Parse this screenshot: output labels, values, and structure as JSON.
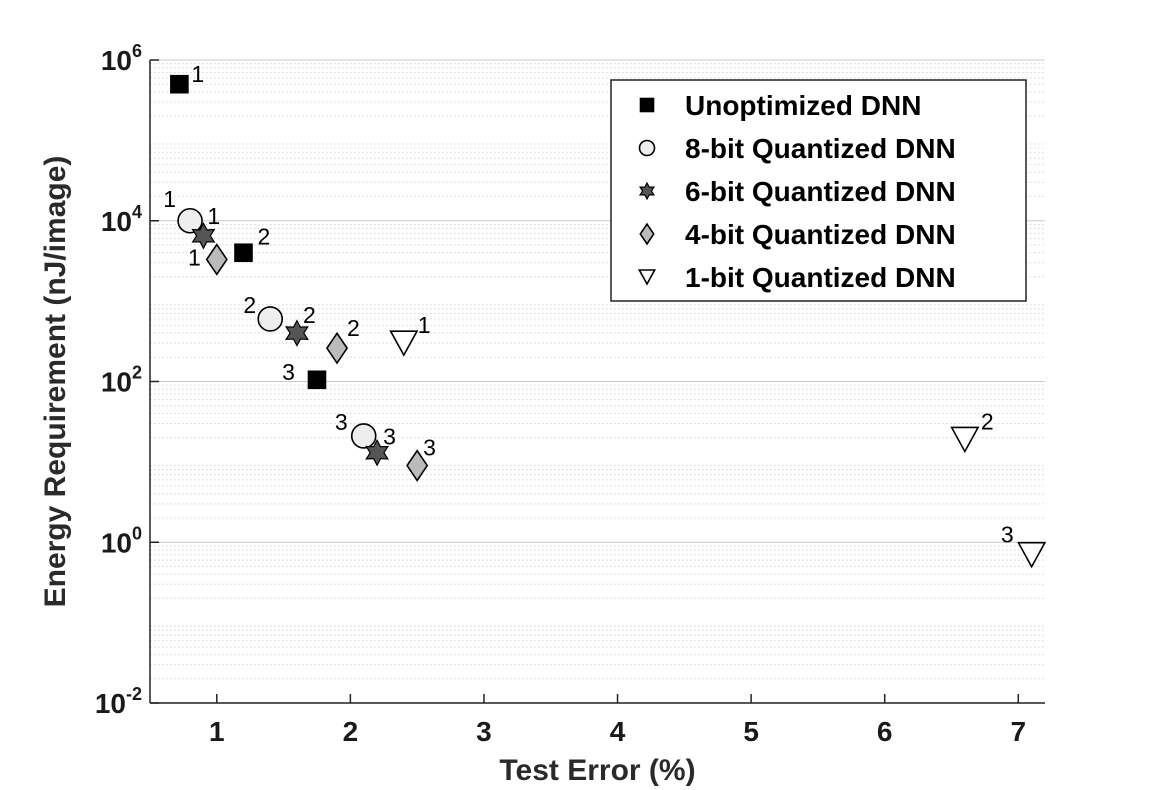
{
  "chart_data": {
    "type": "scatter",
    "title": "",
    "xlabel": "Test Error (%)",
    "ylabel": "Energy Requirement (nJ/image)",
    "xlim": [
      0.5,
      7.2
    ],
    "ylim": [
      0.01,
      1000000
    ],
    "yscale": "log",
    "xticks": [
      1,
      2,
      3,
      4,
      5,
      6,
      7
    ],
    "xtick_labels": [
      "1",
      "2",
      "3",
      "4",
      "5",
      "6",
      "7"
    ],
    "yticks": [
      0.01,
      1,
      100,
      10000,
      1000000
    ],
    "ytick_labels": [
      {
        "base": "10",
        "exp": "-2"
      },
      {
        "base": "10",
        "exp": "0"
      },
      {
        "base": "10",
        "exp": "2"
      },
      {
        "base": "10",
        "exp": "4"
      },
      {
        "base": "10",
        "exp": "6"
      }
    ],
    "grid": "y-major-and-minor",
    "legend_position": "top-right",
    "series": [
      {
        "name": "Unoptimized DNN",
        "marker": "square",
        "color": "#000000",
        "points": [
          {
            "x": 0.72,
            "y": 500000,
            "label": "1"
          },
          {
            "x": 1.2,
            "y": 4000,
            "label": "2"
          },
          {
            "x": 1.75,
            "y": 105,
            "label": "3"
          }
        ]
      },
      {
        "name": "8-bit Quantized DNN",
        "marker": "circle",
        "color": "#eeeeee",
        "points": [
          {
            "x": 0.8,
            "y": 10000,
            "label": "1"
          },
          {
            "x": 1.4,
            "y": 600,
            "label": "2"
          },
          {
            "x": 2.1,
            "y": 21,
            "label": "3"
          }
        ]
      },
      {
        "name": "6-bit Quantized DNN",
        "marker": "hexagram",
        "color": "#555555",
        "points": [
          {
            "x": 0.9,
            "y": 6500,
            "label": "1"
          },
          {
            "x": 1.6,
            "y": 400,
            "label": "2"
          },
          {
            "x": 2.2,
            "y": 13,
            "label": "3"
          }
        ]
      },
      {
        "name": "4-bit Quantized DNN",
        "marker": "diamond",
        "color": "#bbbbbb",
        "points": [
          {
            "x": 1.0,
            "y": 3300,
            "label": "1"
          },
          {
            "x": 1.9,
            "y": 260,
            "label": "2"
          },
          {
            "x": 2.5,
            "y": 9,
            "label": "3"
          }
        ]
      },
      {
        "name": "1-bit Quantized DNN",
        "marker": "triangle-down",
        "color": "#ffffff",
        "points": [
          {
            "x": 2.4,
            "y": 300,
            "label": "1"
          },
          {
            "x": 6.6,
            "y": 19,
            "label": "2"
          },
          {
            "x": 7.1,
            "y": 0.7,
            "label": "3"
          }
        ]
      }
    ]
  }
}
